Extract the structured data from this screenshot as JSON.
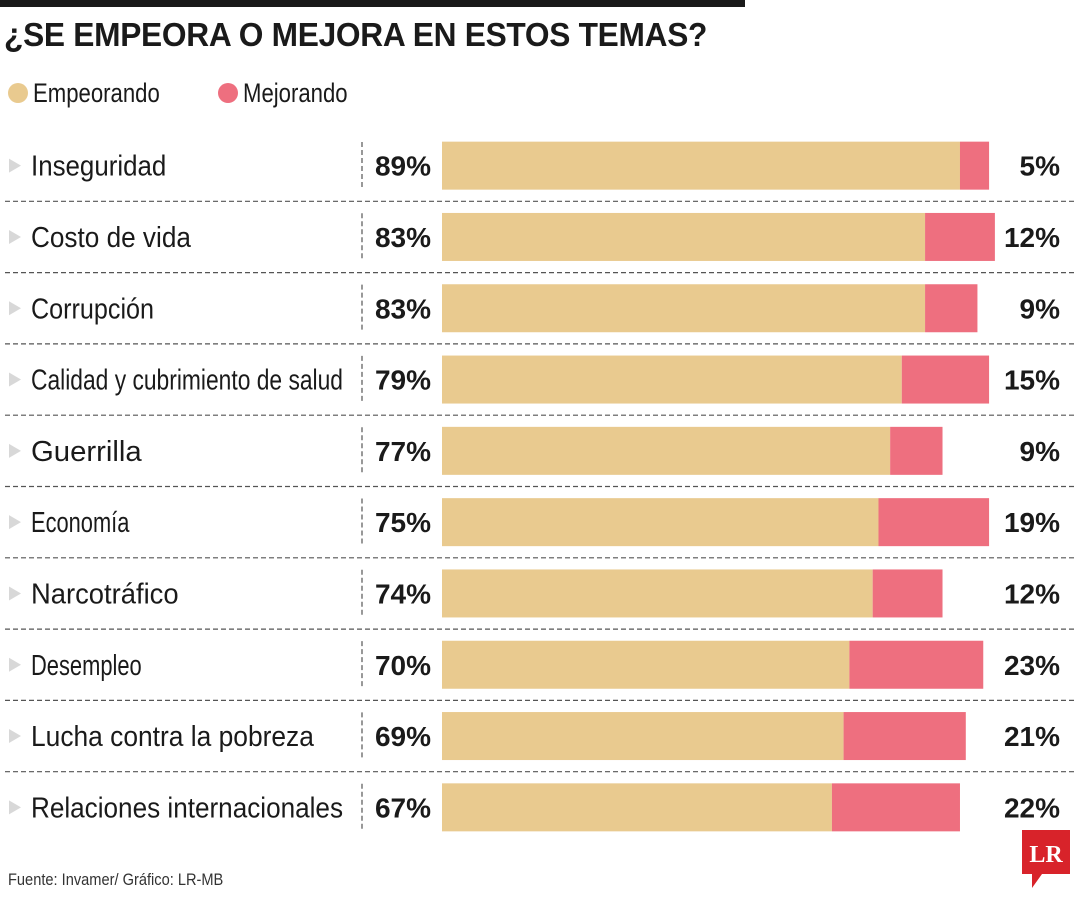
{
  "title": "¿SE EMPEORA O MEJORA EN ESTOS TEMAS?",
  "footer": "Fuente: Invamer/ Gráfico: LR-MB",
  "logo_text": "LR",
  "colors": {
    "empeorando": "#e9ca8f",
    "mejorando": "#ee6f7f",
    "text": "#1a1a1a",
    "arrow": "#d8d8d8",
    "divider": "#555555",
    "logo": "#d8232a"
  },
  "chart_data": {
    "type": "bar",
    "orientation": "horizontal",
    "stacked": true,
    "legend": [
      {
        "name": "Empeorando",
        "color": "#e9ca8f"
      },
      {
        "name": "Mejorando",
        "color": "#ee6f7f"
      }
    ],
    "legend_position": "top-left",
    "categories": [
      "Inseguridad",
      "Costo de vida",
      "Corrupción",
      "Calidad y cubrimiento de salud",
      "Guerrilla",
      "Economía",
      "Narcotráfico",
      "Desempleo",
      "Lucha contra la pobreza",
      "Relaciones internacionales"
    ],
    "series": [
      {
        "name": "Empeorando",
        "values": [
          89,
          83,
          83,
          79,
          77,
          75,
          74,
          70,
          69,
          67
        ],
        "labels": [
          "89%",
          "83%",
          "83%",
          "79%",
          "77%",
          "75%",
          "74%",
          "70%",
          "69%",
          "67%"
        ]
      },
      {
        "name": "Mejorando",
        "values": [
          5,
          12,
          9,
          15,
          9,
          19,
          12,
          23,
          21,
          22
        ],
        "labels": [
          "5%",
          "12%",
          "9%",
          "15%",
          "9%",
          "19%",
          "12%",
          "23%",
          "21%",
          "22%"
        ]
      }
    ],
    "unit": "%",
    "xlim": [
      0,
      100
    ],
    "grid": false
  }
}
